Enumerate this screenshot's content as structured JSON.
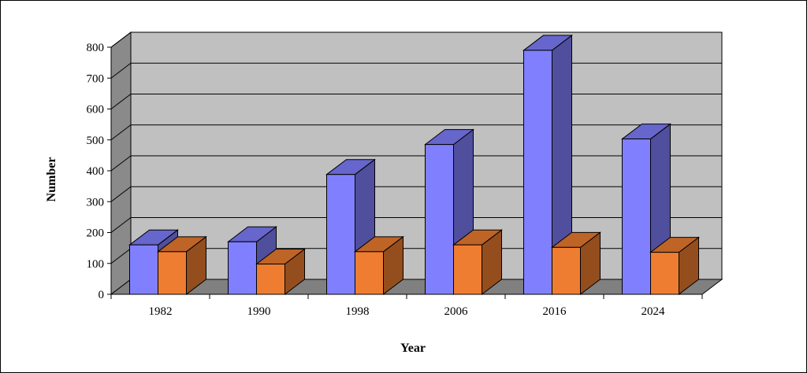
{
  "chart_data": {
    "type": "bar",
    "style": "3d-clustered",
    "categories": [
      "1982",
      "1990",
      "1998",
      "2006",
      "2016",
      "2024"
    ],
    "series": [
      {
        "values": [
          160,
          170,
          388,
          485,
          790,
          503
        ],
        "color": "#8080ff"
      },
      {
        "values": [
          138,
          98,
          138,
          160,
          152,
          136
        ],
        "color": "#ee7d31"
      }
    ],
    "xlabel": "Year",
    "ylabel": "Number",
    "yticks": [
      "0",
      "100",
      "200",
      "300",
      "400",
      "500",
      "600",
      "700",
      "800"
    ],
    "ylim": [
      0,
      800
    ],
    "grid": true,
    "legend": "none",
    "wall_color": "#c0c0c0",
    "floor_color": "#808080"
  }
}
